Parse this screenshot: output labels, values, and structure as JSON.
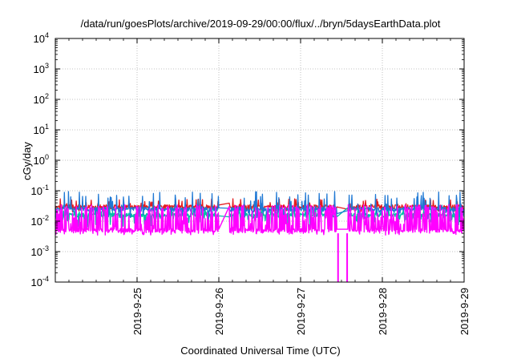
{
  "chart_data": {
    "type": "line",
    "title": "/data/run/goesPlots/archive/2019-09-29/00:00/flux/../bryn/5daysEarthData.plot",
    "xlabel": "Coordinated Universal Time (UTC)",
    "ylabel": "cGy/day",
    "y_scale": "log",
    "ylim": [
      0.0001,
      10000
    ],
    "y_ticks": [
      {
        "value": 10000,
        "base": "10",
        "exp": "4"
      },
      {
        "value": 1000,
        "base": "10",
        "exp": "3"
      },
      {
        "value": 100,
        "base": "10",
        "exp": "2"
      },
      {
        "value": 10,
        "base": "10",
        "exp": "1"
      },
      {
        "value": 1,
        "base": "10",
        "exp": "0"
      },
      {
        "value": 0.1,
        "base": "10",
        "exp": "-1"
      },
      {
        "value": 0.01,
        "base": "10",
        "exp": "-2"
      },
      {
        "value": 0.001,
        "base": "10",
        "exp": "-3"
      },
      {
        "value": 0.0001,
        "base": "10",
        "exp": "-4"
      }
    ],
    "xlim": [
      "2019-09-24 00:00",
      "2019-09-29 00:00"
    ],
    "x_ticks": [
      "2019-9-25",
      "2019-9-26",
      "2019-9-27",
      "2019-9-28",
      "2019-9-29"
    ],
    "grid": true,
    "gaps": [
      {
        "start": "2019-09-26 00:05",
        "end": "2019-09-26 03:00"
      },
      {
        "start": "2019-09-27 10:40",
        "end": "2019-09-27 13:50"
      }
    ],
    "dropouts": [
      {
        "x": "2019-09-27 11:00",
        "y": 0.0001
      },
      {
        "x": "2019-09-27 13:40",
        "y": 0.0001
      }
    ],
    "series": [
      {
        "color": "#e41a1c",
        "baseline": 0.03,
        "spike_max": 0.055,
        "trough_min": 0.02
      },
      {
        "color": "#00bfa5",
        "baseline": 0.016,
        "spike_max": 0.03,
        "trough_min": 0.006
      },
      {
        "color": "#1f78d4",
        "baseline": 0.025,
        "spike_max": 0.095,
        "trough_min": 0.012
      },
      {
        "color": "#ff00ff",
        "baseline": 0.005,
        "spike_max": 0.035,
        "trough_min": 0.0035
      }
    ]
  }
}
